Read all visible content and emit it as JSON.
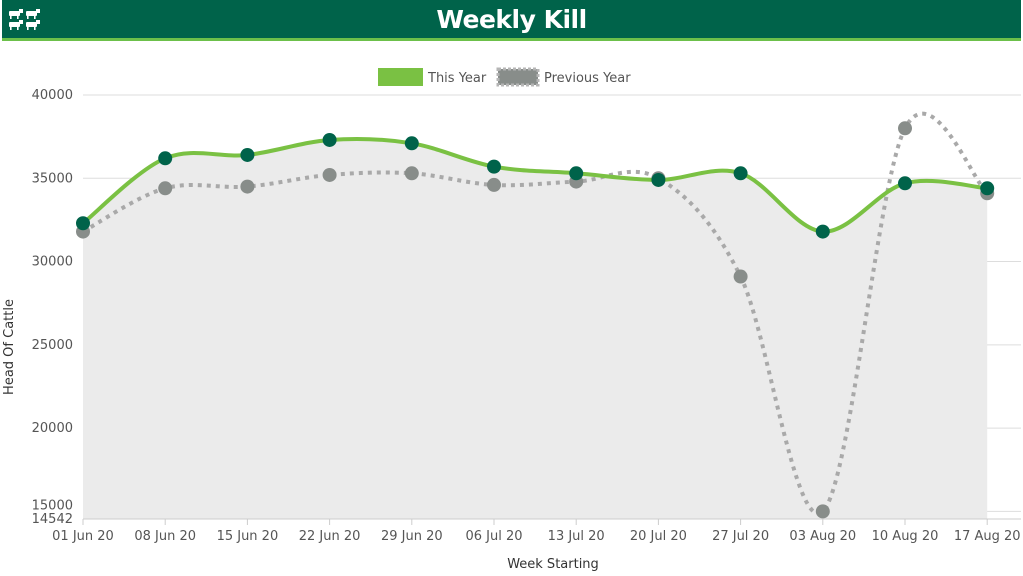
{
  "header": {
    "title": "Weekly Kill",
    "icon": "cattle-icon"
  },
  "colors": {
    "header_bg": "#00634a",
    "header_border": "#6cc04a",
    "this_year_line": "#7ac143",
    "this_year_marker": "#00634a",
    "previous_year_line": "#a9a9a9",
    "previous_year_marker": "#888d8a",
    "area_fill": "#ebebeb"
  },
  "chart_data": {
    "type": "line",
    "xlabel": "Week Starting",
    "ylabel": "Head Of Cattle",
    "categories": [
      "01 Jun 20",
      "08 Jun 20",
      "15 Jun 20",
      "22 Jun 20",
      "29 Jun 20",
      "06 Jul 20",
      "13 Jul 20",
      "20 Jul 20",
      "27 Jul 20",
      "03 Aug 20",
      "10 Aug 20",
      "17 Aug 20"
    ],
    "ylim": [
      14542,
      40000
    ],
    "yticks": [
      14542,
      15000,
      20000,
      25000,
      30000,
      35000,
      40000
    ],
    "grid": true,
    "legend_position": "top-center",
    "series": [
      {
        "name": "This Year",
        "style": "solid",
        "values": [
          32300,
          36200,
          36400,
          37300,
          37100,
          35700,
          35300,
          34900,
          35300,
          31800,
          34700,
          34400
        ]
      },
      {
        "name": "Previous Year",
        "style": "dotted",
        "values": [
          31800,
          34400,
          34500,
          35200,
          35300,
          34600,
          34800,
          35000,
          29100,
          15000,
          38000,
          34100
        ]
      }
    ]
  }
}
